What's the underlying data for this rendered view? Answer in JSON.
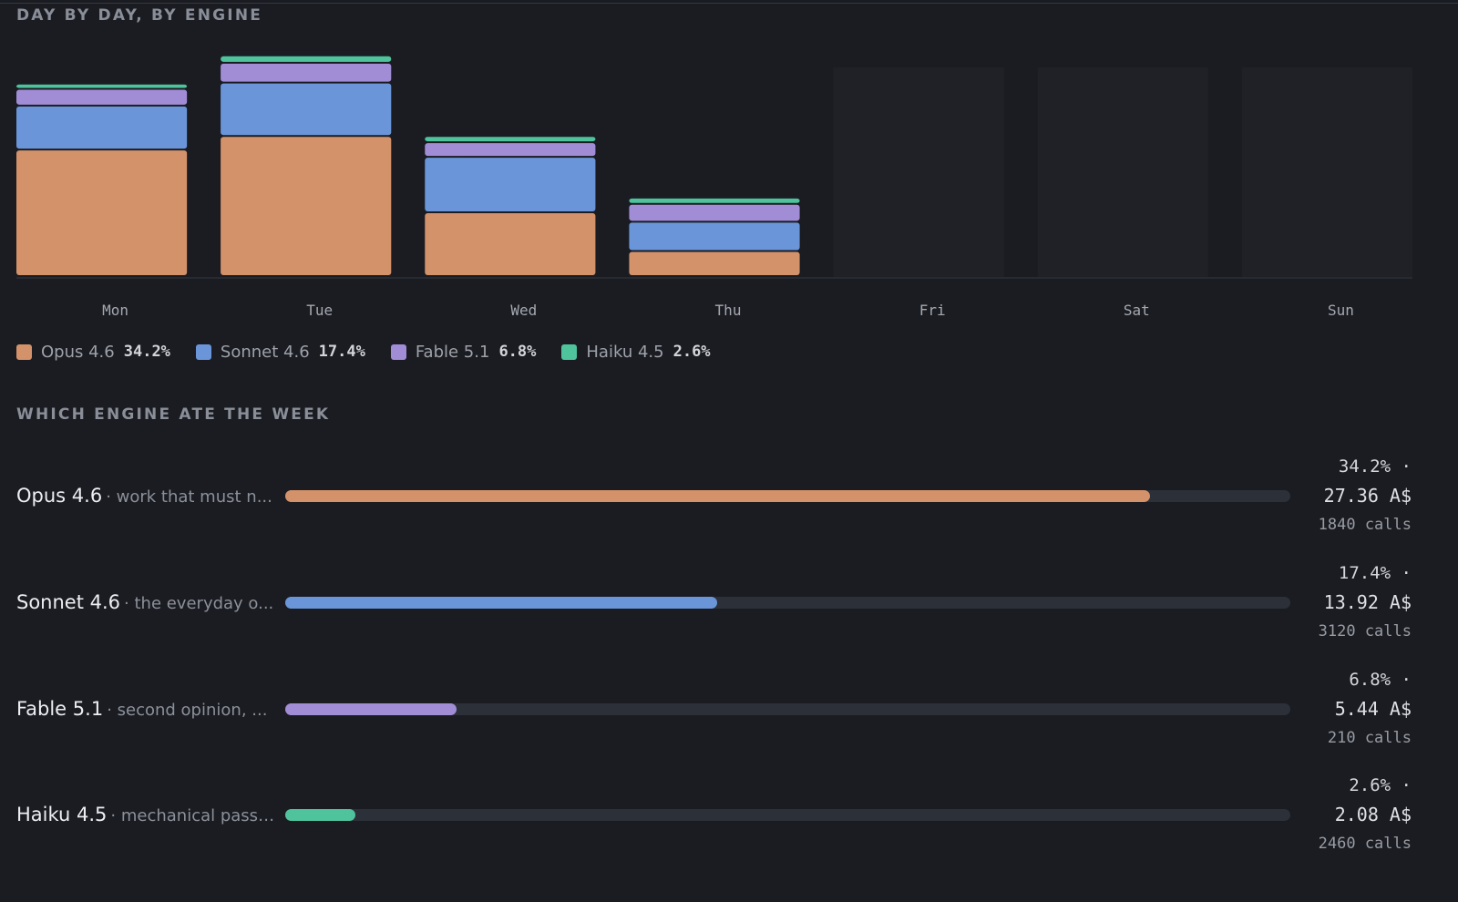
{
  "sections": {
    "daily_title": "DAY BY DAY, BY ENGINE",
    "week_title": "WHICH ENGINE ATE THE WEEK"
  },
  "colors": {
    "opus": "#d4926a",
    "sonnet": "#6a96d9",
    "fable": "#a18dd6",
    "haiku": "#4fc39c",
    "empty_day": "#1f2126",
    "baseline": "#34373f"
  },
  "chart_data": {
    "type": "bar",
    "stacked": true,
    "title": "",
    "categories": [
      "Mon",
      "Tue",
      "Wed",
      "Thu",
      "Fri",
      "Sat",
      "Sun"
    ],
    "series": [
      {
        "name": "Opus 4.6",
        "color": "#d4926a",
        "values": [
          121,
          134,
          61,
          24,
          0,
          0,
          0
        ]
      },
      {
        "name": "Sonnet 4.6",
        "color": "#6a96d9",
        "values": [
          42,
          51,
          53,
          28,
          0,
          0,
          0
        ]
      },
      {
        "name": "Fable 5.1",
        "color": "#a18dd6",
        "values": [
          16,
          19,
          14,
          17,
          0,
          0,
          0
        ]
      },
      {
        "name": "Haiku 4.5",
        "color": "#4fc39c",
        "values": [
          5,
          7,
          6,
          6,
          0,
          0,
          0
        ]
      }
    ],
    "empty_days": [
      "Fri",
      "Sat",
      "Sun"
    ],
    "ylim": [
      0,
      230
    ],
    "grid": false,
    "legend": "bottom-left"
  },
  "legend": [
    {
      "name": "Opus 4.6",
      "pct": "34.2%",
      "color": "#d4926a"
    },
    {
      "name": "Sonnet 4.6",
      "pct": "17.4%",
      "color": "#6a96d9"
    },
    {
      "name": "Fable 5.1",
      "pct": "6.8%",
      "color": "#a18dd6"
    },
    {
      "name": "Haiku 4.5",
      "pct": "2.6%",
      "color": "#4fc39c"
    }
  ],
  "engines": [
    {
      "name": "Opus 4.6",
      "desc": "· work that must n...",
      "share": 0.86,
      "pct": "34.2% ·",
      "cost": "27.36 A$",
      "calls": "1840 calls",
      "color": "#d4926a"
    },
    {
      "name": "Sonnet 4.6",
      "desc": "· the everyday o...",
      "share": 0.43,
      "pct": "17.4% ·",
      "cost": "13.92 A$",
      "calls": "3120 calls",
      "color": "#6a96d9"
    },
    {
      "name": "Fable 5.1",
      "desc": "· second opinion, ...",
      "share": 0.17,
      "pct": "6.8% ·",
      "cost": "5.44 A$",
      "calls": "210 calls",
      "color": "#a18dd6"
    },
    {
      "name": "Haiku 4.5",
      "desc": "· mechanical passes",
      "share": 0.07,
      "pct": "2.6% ·",
      "cost": "2.08 A$",
      "calls": "2460 calls",
      "color": "#4fc39c"
    }
  ]
}
